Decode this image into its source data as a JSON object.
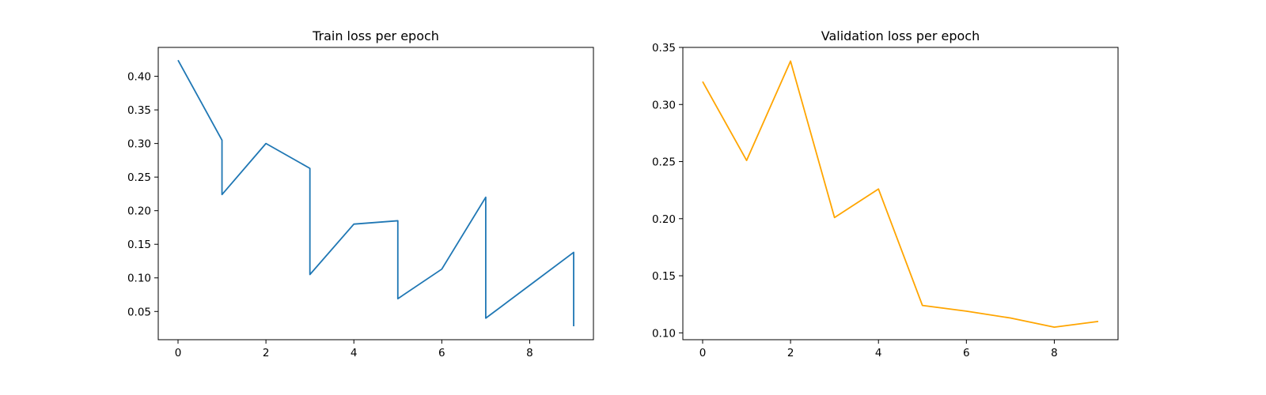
{
  "chart_data": [
    {
      "type": "line",
      "title": "Train loss per epoch",
      "xlabel": "",
      "ylabel": "",
      "xlim": [
        -0.45,
        9.45
      ],
      "ylim": [
        0.008,
        0.443
      ],
      "xticks": [
        0,
        2,
        4,
        6,
        8
      ],
      "xtick_labels": [
        "0",
        "2",
        "4",
        "6",
        "8"
      ],
      "yticks": [
        0.05,
        0.1,
        0.15,
        0.2,
        0.25,
        0.3,
        0.35,
        0.4
      ],
      "ytick_labels": [
        "0.05",
        "0.10",
        "0.15",
        "0.20",
        "0.25",
        "0.30",
        "0.35",
        "0.40"
      ],
      "grid": false,
      "color": "#1f77b4",
      "series": [
        {
          "x": [
            0,
            1,
            1,
            2,
            3,
            3,
            4,
            5,
            5,
            6,
            7,
            7,
            8,
            9,
            9
          ],
          "y": [
            0.424,
            0.305,
            0.224,
            0.3,
            0.263,
            0.105,
            0.18,
            0.185,
            0.069,
            0.113,
            0.22,
            0.04,
            0.089,
            0.138,
            0.028
          ]
        }
      ]
    },
    {
      "type": "line",
      "title": "Validation loss per epoch",
      "xlabel": "",
      "ylabel": "",
      "xlim": [
        -0.45,
        9.45
      ],
      "ylim": [
        0.094,
        0.35
      ],
      "xticks": [
        0,
        2,
        4,
        6,
        8
      ],
      "xtick_labels": [
        "0",
        "2",
        "4",
        "6",
        "8"
      ],
      "yticks": [
        0.1,
        0.15,
        0.2,
        0.25,
        0.3,
        0.35
      ],
      "ytick_labels": [
        "0.10",
        "0.15",
        "0.20",
        "0.25",
        "0.30",
        "0.35"
      ],
      "grid": false,
      "color": "#ffa500",
      "series": [
        {
          "x": [
            0,
            1,
            2,
            3,
            4,
            5,
            6,
            7,
            8,
            9
          ],
          "y": [
            0.32,
            0.251,
            0.338,
            0.201,
            0.226,
            0.124,
            0.119,
            0.113,
            0.105,
            0.11
          ]
        }
      ]
    }
  ]
}
